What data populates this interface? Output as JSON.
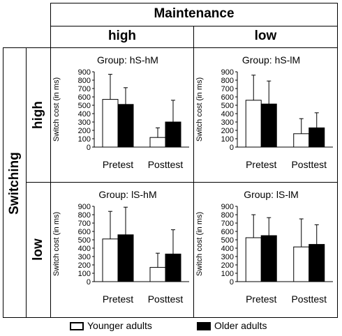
{
  "header": {
    "maintenance_label": "Maintenance",
    "maintenance_high": "high",
    "maintenance_low": "low",
    "switching_label": "Switching",
    "switching_high": "high",
    "switching_low": "low"
  },
  "legend": {
    "younger_label": "Younger adults",
    "older_label": "Older adults",
    "younger_color": "#ffffff",
    "older_color": "#000000"
  },
  "chart_data": [
    {
      "type": "bar",
      "title": "Group: hS-hM",
      "ylabel": "Switch cost (in ms)",
      "ylim": [
        0,
        900
      ],
      "yticks": [
        0,
        100,
        200,
        300,
        400,
        500,
        600,
        700,
        800,
        900
      ],
      "categories": [
        "Pretest",
        "Posttest"
      ],
      "series": [
        {
          "name": "Younger adults",
          "values": [
            570,
            115
          ],
          "error_upper": [
            870,
            230
          ]
        },
        {
          "name": "Older adults",
          "values": [
            510,
            300
          ],
          "error_upper": [
            710,
            560
          ]
        }
      ]
    },
    {
      "type": "bar",
      "title": "Group: hS-lM",
      "ylabel": "Switch cost (in ms)",
      "ylim": [
        0,
        900
      ],
      "yticks": [
        0,
        100,
        200,
        300,
        400,
        500,
        600,
        700,
        800,
        900
      ],
      "categories": [
        "Pretest",
        "Posttest"
      ],
      "series": [
        {
          "name": "Younger adults",
          "values": [
            560,
            160
          ],
          "error_upper": [
            860,
            340
          ]
        },
        {
          "name": "Older adults",
          "values": [
            515,
            230
          ],
          "error_upper": [
            790,
            410
          ]
        }
      ]
    },
    {
      "type": "bar",
      "title": "Group: lS-hM",
      "ylabel": "Switch cost (in ms)",
      "ylim": [
        0,
        900
      ],
      "yticks": [
        0,
        100,
        200,
        300,
        400,
        500,
        600,
        700,
        800,
        900
      ],
      "categories": [
        "Pretest",
        "Posttest"
      ],
      "series": [
        {
          "name": "Younger adults",
          "values": [
            510,
            170
          ],
          "error_upper": [
            840,
            340
          ]
        },
        {
          "name": "Older adults",
          "values": [
            560,
            330
          ],
          "error_upper": [
            890,
            620
          ]
        }
      ]
    },
    {
      "type": "bar",
      "title": "Group: lS-lM",
      "ylabel": "Switch cost (in ms)",
      "ylim": [
        0,
        900
      ],
      "yticks": [
        0,
        100,
        200,
        300,
        400,
        500,
        600,
        700,
        800,
        900
      ],
      "categories": [
        "Pretest",
        "Posttest"
      ],
      "series": [
        {
          "name": "Younger adults",
          "values": [
            525,
            415
          ],
          "error_upper": [
            800,
            750
          ]
        },
        {
          "name": "Older adults",
          "values": [
            550,
            445
          ],
          "error_upper": [
            765,
            680
          ]
        }
      ]
    }
  ]
}
